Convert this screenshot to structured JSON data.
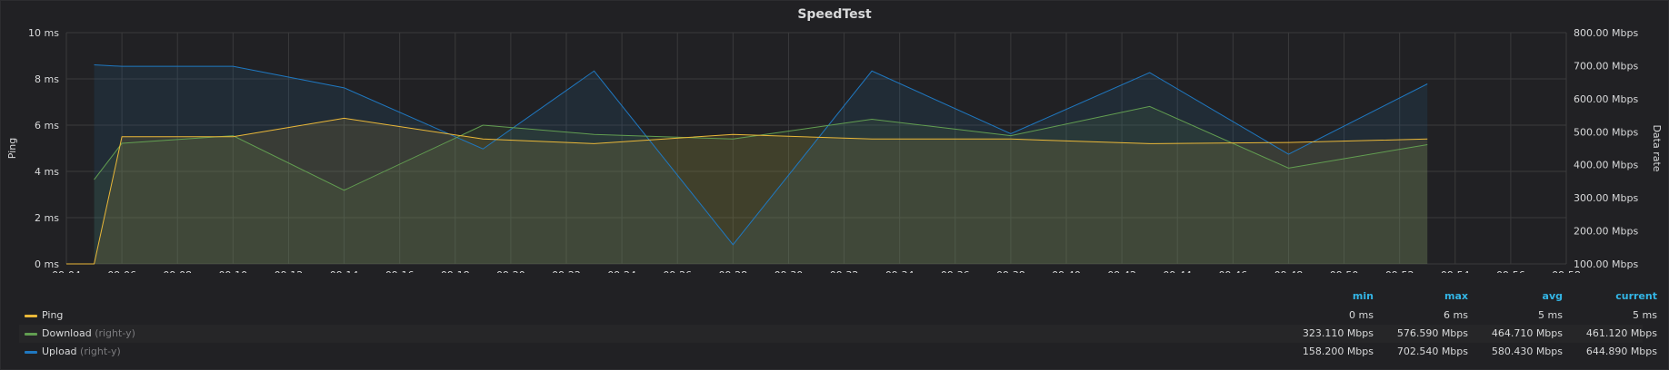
{
  "panel": {
    "title": "SpeedTest"
  },
  "colors": {
    "ping": "#eab839",
    "download": "#629e51",
    "upload": "#1f78c1",
    "grid": "#3a3a3c"
  },
  "chart_data": {
    "type": "line",
    "title": "SpeedTest",
    "x_ticks": [
      "09:04",
      "09:06",
      "09:08",
      "09:10",
      "09:12",
      "09:14",
      "09:16",
      "09:18",
      "09:20",
      "09:22",
      "09:24",
      "09:26",
      "09:28",
      "09:30",
      "09:32",
      "09:34",
      "09:36",
      "09:38",
      "09:40",
      "09:42",
      "09:44",
      "09:46",
      "09:48",
      "09:50",
      "09:52",
      "09:54",
      "09:56",
      "09:58"
    ],
    "x_range": [
      "09:04",
      "09:58"
    ],
    "left_axis": {
      "label": "Ping",
      "ticks": [
        "0 ms",
        "2 ms",
        "4 ms",
        "6 ms",
        "8 ms",
        "10 ms"
      ],
      "range": [
        0,
        10
      ]
    },
    "right_axis": {
      "label": "Data rate",
      "ticks": [
        "100.00 Mbps",
        "200.00 Mbps",
        "300.00 Mbps",
        "400.00 Mbps",
        "500.00 Mbps",
        "600.00 Mbps",
        "700.00 Mbps",
        "800.00 Mbps"
      ],
      "range": [
        100,
        800
      ]
    },
    "series": [
      {
        "name": "Ping",
        "axis": "left",
        "x": [
          "09:04",
          "09:05",
          "09:06",
          "09:10",
          "09:14",
          "09:19",
          "09:23",
          "09:28",
          "09:33",
          "09:38",
          "09:43",
          "09:48",
          "09:53"
        ],
        "values": [
          0,
          0,
          5.5,
          5.5,
          6.3,
          5.4,
          5.2,
          5.6,
          5.4,
          5.4,
          5.2,
          5.25,
          5.4
        ]
      },
      {
        "name": "Download",
        "axis": "right",
        "x": [
          "09:05",
          "09:06",
          "09:10",
          "09:14",
          "09:19",
          "09:23",
          "09:28",
          "09:33",
          "09:38",
          "09:43",
          "09:48",
          "09:53"
        ],
        "values": [
          355,
          465,
          488,
          323,
          520,
          492,
          478,
          538,
          488,
          576.6,
          390,
          461.1
        ]
      },
      {
        "name": "Upload",
        "axis": "right",
        "x": [
          "09:05",
          "09:06",
          "09:10",
          "09:14",
          "09:19",
          "09:23",
          "09:28",
          "09:33",
          "09:38",
          "09:43",
          "09:48",
          "09:53"
        ],
        "values": [
          702.5,
          698,
          698,
          633,
          448,
          684,
          158.2,
          684,
          494,
          679,
          432,
          644.9
        ]
      }
    ],
    "grid": true
  },
  "legend": {
    "headers": {
      "min": "min",
      "max": "max",
      "avg": "avg",
      "current": "current"
    },
    "rows": [
      {
        "name": "Ping",
        "axis_note": "",
        "min": "0 ms",
        "max": "6 ms",
        "avg": "5 ms",
        "current": "5 ms"
      },
      {
        "name": "Download",
        "axis_note": "(right-y)",
        "min": "323.110 Mbps",
        "max": "576.590 Mbps",
        "avg": "464.710 Mbps",
        "current": "461.120 Mbps"
      },
      {
        "name": "Upload",
        "axis_note": "(right-y)",
        "min": "158.200 Mbps",
        "max": "702.540 Mbps",
        "avg": "580.430 Mbps",
        "current": "644.890 Mbps"
      }
    ]
  }
}
